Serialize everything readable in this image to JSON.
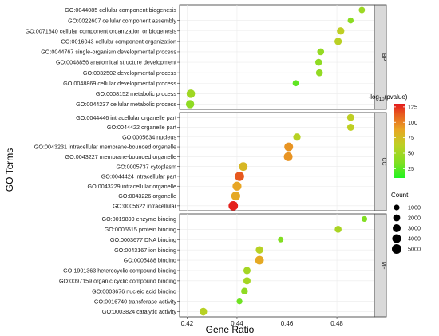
{
  "chart_data": {
    "type": "scatter",
    "title": "",
    "xlabel": "Gene Ratio",
    "ylabel": "GO Terms",
    "xlim": [
      0.417,
      0.495
    ],
    "x_ticks": [
      0.42,
      0.44,
      0.46,
      0.48
    ],
    "x_tick_labels": [
      "0.42",
      "0.44",
      "0.46",
      "0.48"
    ],
    "legend_color": {
      "title_main": "-log",
      "title_sub": "10",
      "title_tail": "(pvalue)",
      "min": 10,
      "max": 130,
      "ticks": [
        25,
        50,
        75,
        100,
        125
      ],
      "tick_labels": [
        "25",
        "50",
        "75",
        "100",
        "125"
      ],
      "colors": [
        "#21f421",
        "#7fdf22",
        "#bfcf24",
        "#e8a624",
        "#e75f1f",
        "#e41a1c"
      ]
    },
    "legend_size": {
      "title": "Count",
      "values": [
        1000,
        2000,
        3000,
        4000,
        5000
      ],
      "labels": [
        "1000",
        "2000",
        "3000",
        "4000",
        "5000"
      ]
    },
    "facets": [
      {
        "name": "BP",
        "points": [
          {
            "label": "GO:0044085 cellular component biogenesis",
            "x": 0.49,
            "pvalue_log": 45,
            "count": 1400
          },
          {
            "label": "GO:0022607 cellular component assembly",
            "x": 0.4855,
            "pvalue_log": 38,
            "count": 1200
          },
          {
            "label": "GO:0071840 cellular component organization or biogenesis",
            "x": 0.4815,
            "pvalue_log": 58,
            "count": 2400
          },
          {
            "label": "GO:0016043 cellular component organization",
            "x": 0.4805,
            "pvalue_log": 56,
            "count": 2300
          },
          {
            "label": "GO:0044767 single-organism developmental process",
            "x": 0.4735,
            "pvalue_log": 42,
            "count": 1900
          },
          {
            "label": "GO:0048856 anatomical structure development",
            "x": 0.4727,
            "pvalue_log": 40,
            "count": 1850
          },
          {
            "label": "GO:0032502 developmental process",
            "x": 0.473,
            "pvalue_log": 41,
            "count": 1900
          },
          {
            "label": "GO:0048869 cellular developmental process",
            "x": 0.4635,
            "pvalue_log": 26,
            "count": 1300
          },
          {
            "label": "GO:0008152 metabolic process",
            "x": 0.4215,
            "pvalue_log": 46,
            "count": 3500
          },
          {
            "label": "GO:0044237 cellular metabolic process",
            "x": 0.4212,
            "pvalue_log": 40,
            "count": 3300
          }
        ]
      },
      {
        "name": "CC",
        "points": [
          {
            "label": "GO:0044446 intracellular organelle part",
            "x": 0.4855,
            "pvalue_log": 58,
            "count": 2100
          },
          {
            "label": "GO:0044422 organelle part",
            "x": 0.4855,
            "pvalue_log": 58,
            "count": 2100
          },
          {
            "label": "GO:0005634 nucleus",
            "x": 0.464,
            "pvalue_log": 55,
            "count": 2400
          },
          {
            "label": "GO:0043231 intracellular membrane-bounded organelle",
            "x": 0.4607,
            "pvalue_log": 88,
            "count": 3900
          },
          {
            "label": "GO:0043227 membrane-bounded organelle",
            "x": 0.4605,
            "pvalue_log": 88,
            "count": 3900
          },
          {
            "label": "GO:0005737 cytoplasm",
            "x": 0.4425,
            "pvalue_log": 72,
            "count": 3700
          },
          {
            "label": "GO:0044424 intracellular part",
            "x": 0.441,
            "pvalue_log": 108,
            "count": 4500
          },
          {
            "label": "GO:0043229 intracellular organelle",
            "x": 0.44,
            "pvalue_log": 82,
            "count": 4100
          },
          {
            "label": "GO:0043226 organelle",
            "x": 0.4395,
            "pvalue_log": 80,
            "count": 4100
          },
          {
            "label": "GO:0005622 intracellular",
            "x": 0.4385,
            "pvalue_log": 128,
            "count": 4800
          }
        ]
      },
      {
        "name": "MF",
        "points": [
          {
            "label": "GO:0019899 enzyme binding",
            "x": 0.491,
            "pvalue_log": 35,
            "count": 1000
          },
          {
            "label": "GO:0005515 protein binding",
            "x": 0.4805,
            "pvalue_log": 50,
            "count": 1900
          },
          {
            "label": "GO:0003677 DNA binding",
            "x": 0.4575,
            "pvalue_log": 35,
            "count": 900
          },
          {
            "label": "GO:0043167 ion binding",
            "x": 0.449,
            "pvalue_log": 55,
            "count": 2500
          },
          {
            "label": "GO:0005488 binding",
            "x": 0.449,
            "pvalue_log": 80,
            "count": 3700
          },
          {
            "label": "GO:1901363 heterocyclic compound binding",
            "x": 0.444,
            "pvalue_log": 48,
            "count": 2200
          },
          {
            "label": "GO:0097159 organic cyclic compound binding",
            "x": 0.444,
            "pvalue_log": 48,
            "count": 2200
          },
          {
            "label": "GO:0003676 nucleic acid binding",
            "x": 0.443,
            "pvalue_log": 40,
            "count": 1800
          },
          {
            "label": "GO:0016740 transferase activity",
            "x": 0.441,
            "pvalue_log": 30,
            "count": 1100
          },
          {
            "label": "GO:0003824 catalytic activity",
            "x": 0.4265,
            "pvalue_log": 55,
            "count": 2600
          }
        ]
      }
    ]
  }
}
